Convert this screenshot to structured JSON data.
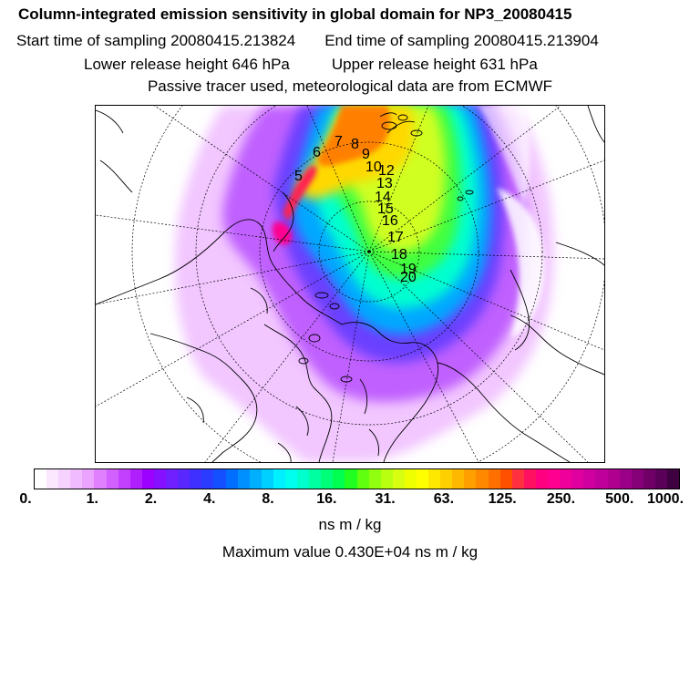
{
  "header": {
    "title": "Column-integrated emission sensitivity in global domain for NP3_20080415",
    "start_sampling": "Start time of sampling 20080415.213824",
    "end_sampling": "End time of sampling 20080415.213904",
    "lower_release": "Lower release height  646 hPa",
    "upper_release": "Upper release height  631 hPa",
    "tracer_note": "Passive tracer used, meteorological data are from ECMWF"
  },
  "trajectory_labels": [
    "5",
    "6",
    "7",
    "8",
    "9",
    "10",
    "12",
    "13",
    "14",
    "15",
    "16",
    "17",
    "18",
    "19",
    "20"
  ],
  "colorbar": {
    "tick_labels": [
      "0.",
      "1.",
      "2.",
      "4.",
      "8.",
      "16.",
      "31.",
      "63.",
      "125.",
      "250.",
      "500.",
      "1000."
    ],
    "colors": [
      "#ffffff",
      "#fbe8ff",
      "#f6d2ff",
      "#f0bbff",
      "#eaa3ff",
      "#e080ff",
      "#d260ff",
      "#c440ff",
      "#b020ff",
      "#9c00ff",
      "#8610ff",
      "#7020ff",
      "#5a28ff",
      "#4030ff",
      "#2a3cff",
      "#1450ff",
      "#006eff",
      "#0090ff",
      "#00b0ff",
      "#00d0ff",
      "#00f0ff",
      "#00ffee",
      "#00ffcc",
      "#00ffa0",
      "#00ff78",
      "#00ff50",
      "#20ff20",
      "#60ff10",
      "#90ff10",
      "#b8ff10",
      "#d8ff10",
      "#f0ff00",
      "#ffff00",
      "#ffe800",
      "#ffd000",
      "#ffb800",
      "#ffa000",
      "#ff8800",
      "#ff7000",
      "#ff5000",
      "#ff3040",
      "#ff1060",
      "#ff0080",
      "#ff0090",
      "#f0009a",
      "#e000a0",
      "#d000a0",
      "#c0009a",
      "#b00090",
      "#9a0088",
      "#860078",
      "#700068",
      "#5a0058",
      "#3e0040"
    ],
    "units": "ns m / kg",
    "max_value": "Maximum value  0.430E+04 ns m / kg"
  }
}
